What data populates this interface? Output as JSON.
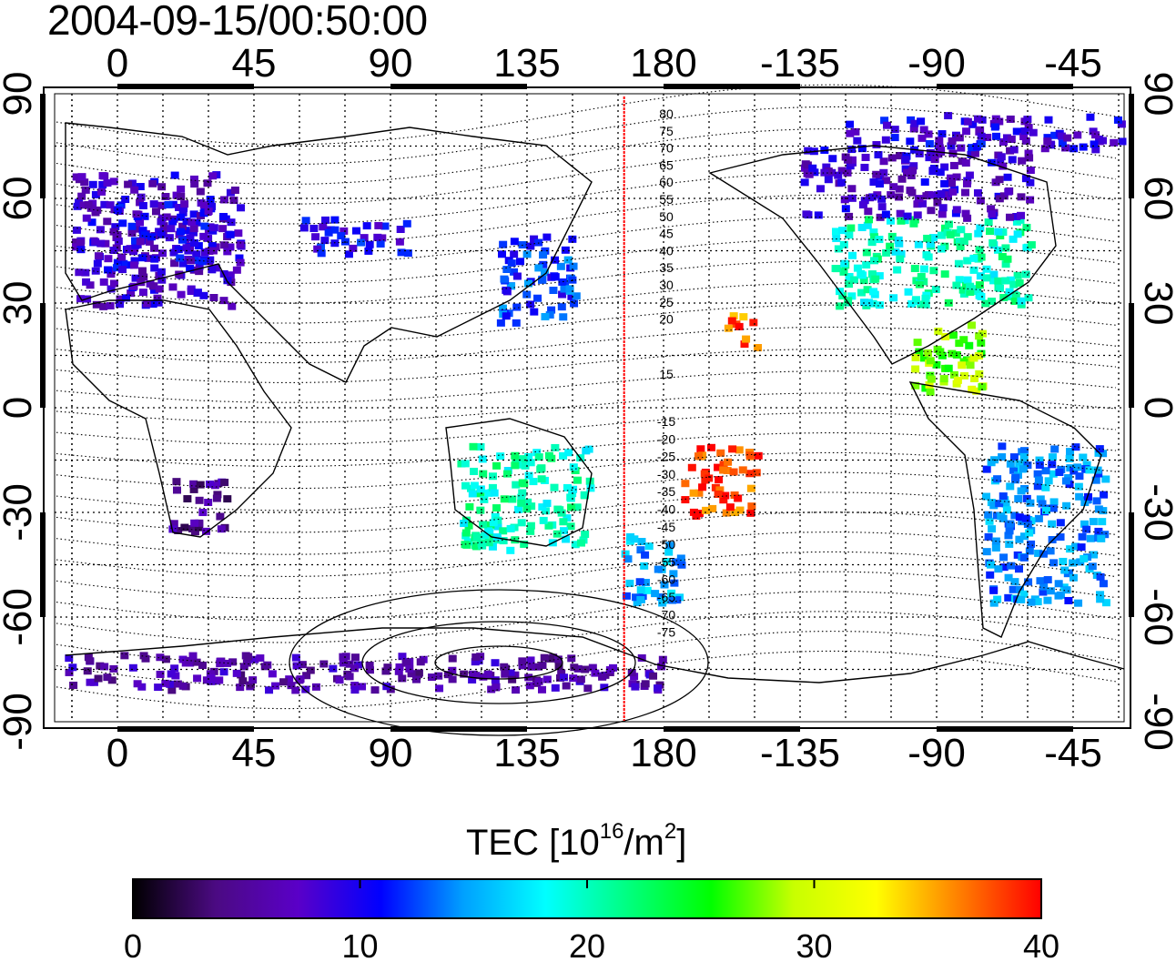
{
  "header": {
    "timestamp": "2004-09-15/00:50:00"
  },
  "map": {
    "lon_ticks": [
      "0",
      "45",
      "90",
      "135",
      "180",
      "-135",
      "-90",
      "-45"
    ],
    "lat_ticks": [
      "90",
      "60",
      "30",
      "0",
      "-30",
      "-60",
      "-90"
    ],
    "meridian_marker_lon": 167,
    "mlat_labels_north": [
      "80",
      "75",
      "70",
      "65",
      "60",
      "55",
      "50",
      "45",
      "40",
      "35",
      "30",
      "25",
      "20",
      "15"
    ],
    "mlat_labels_south": [
      "-15",
      "-20",
      "-25",
      "-30",
      "-35",
      "-40",
      "-45",
      "-50",
      "-55",
      "-60",
      "-65",
      "-70",
      "-75"
    ],
    "colors": {
      "marker": "#ff0000",
      "land_outline": "#000000"
    }
  },
  "colorbar": {
    "title_prefix": "TEC  [10",
    "title_sup1": "16",
    "title_mid": "/m",
    "title_sup2": "2",
    "title_suffix": "]",
    "min": 0,
    "max": 40,
    "tick_labels": [
      "0",
      "10",
      "20",
      "30",
      "40"
    ],
    "colormap": [
      "#000000",
      "#4b0a82",
      "#5a00c8",
      "#0000ff",
      "#00a0ff",
      "#00ffff",
      "#00ff7f",
      "#00ff00",
      "#c8ff00",
      "#ffff00",
      "#ff8000",
      "#ff0000"
    ]
  },
  "tec_regions": [
    {
      "name": "europe",
      "lon": [
        -15,
        40
      ],
      "lat": [
        30,
        68
      ],
      "tec": 8
    },
    {
      "name": "europe-core",
      "lon": [
        -5,
        30
      ],
      "lat": [
        40,
        60
      ],
      "tec": 9
    },
    {
      "name": "central-asia",
      "lon": [
        60,
        95
      ],
      "lat": [
        45,
        55
      ],
      "tec": 10
    },
    {
      "name": "japan",
      "lon": [
        125,
        150
      ],
      "lat": [
        25,
        50
      ],
      "tec": 12
    },
    {
      "name": "north-america",
      "lon": [
        -125,
        -60
      ],
      "lat": [
        30,
        55
      ],
      "tec": 20
    },
    {
      "name": "canada",
      "lon": [
        -135,
        -60
      ],
      "lat": [
        55,
        75
      ],
      "tec": 8
    },
    {
      "name": "central-america",
      "lon": [
        -100,
        -75
      ],
      "lat": [
        5,
        25
      ],
      "tec": 28
    },
    {
      "name": "pacific-east",
      "lon": [
        185,
        210
      ],
      "lat": [
        -30,
        -10
      ],
      "tec": 38
    },
    {
      "name": "hawaii",
      "lon": [
        200,
        210
      ],
      "lat": [
        18,
        28
      ],
      "tec": 37
    },
    {
      "name": "nz",
      "lon": [
        165,
        185
      ],
      "lat": [
        -55,
        -35
      ],
      "tec": 15
    },
    {
      "name": "australia",
      "lon": [
        112,
        155
      ],
      "lat": [
        -40,
        -10
      ],
      "tec": 20
    },
    {
      "name": "south-america",
      "lon": [
        -75,
        -35
      ],
      "lat": [
        -55,
        -10
      ],
      "tec": 14
    },
    {
      "name": "africa-south",
      "lon": [
        15,
        35
      ],
      "lat": [
        -35,
        -20
      ],
      "tec": 5
    },
    {
      "name": "antarctica",
      "lon": [
        -20,
        180
      ],
      "lat": [
        -80,
        -70
      ],
      "tec": 6
    },
    {
      "name": "arctic",
      "lon": [
        -120,
        -20
      ],
      "lat": [
        75,
        85
      ],
      "tec": 9
    }
  ]
}
